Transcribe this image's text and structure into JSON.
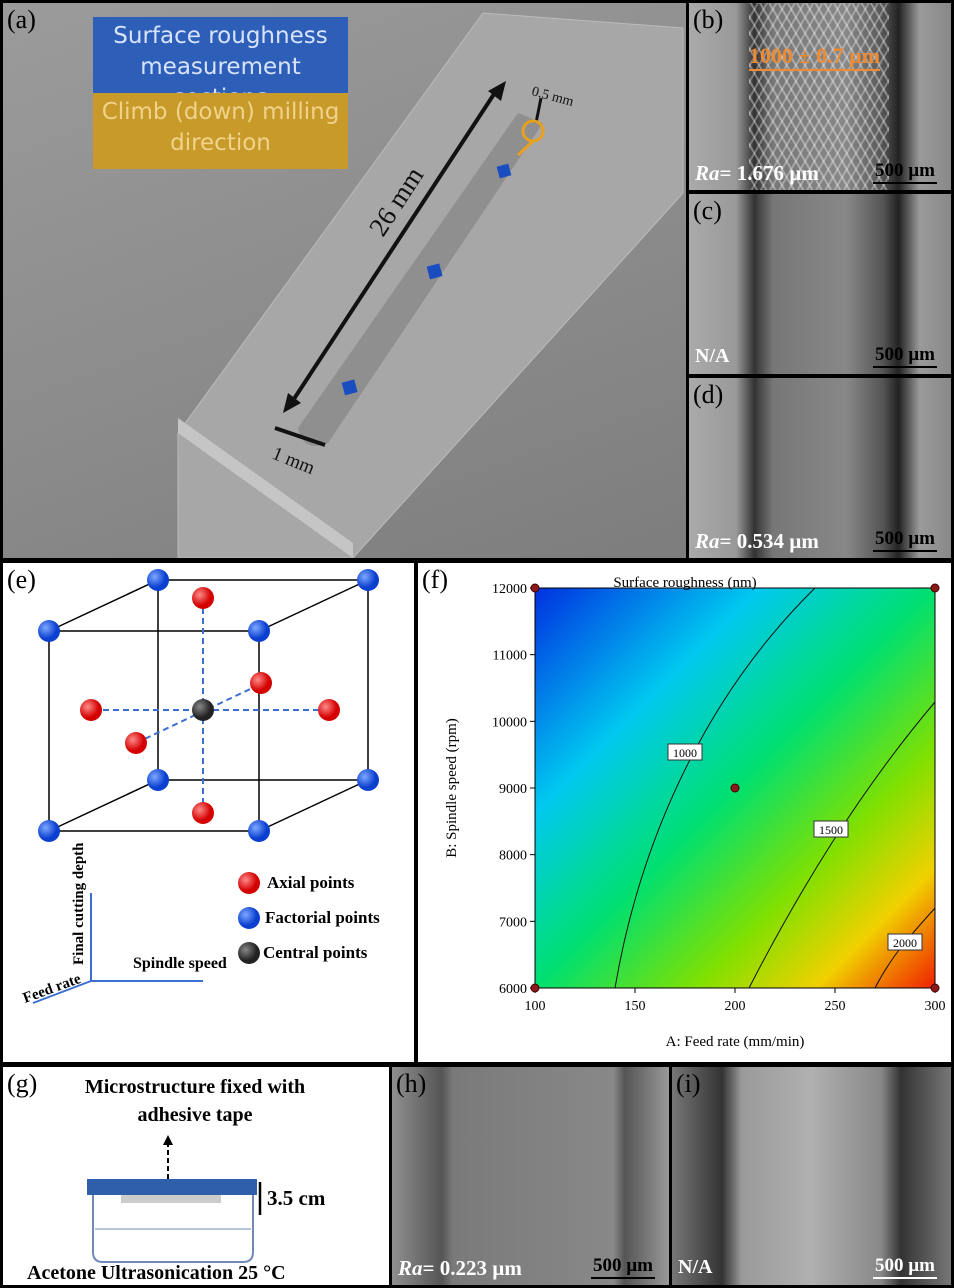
{
  "panel_a": {
    "label": "(a)",
    "legend_sections": "Surface roughness measurement sections",
    "legend_direction": "Climb (down) milling direction",
    "length": "26 mm",
    "depth": "0.5 mm",
    "width": "1 mm"
  },
  "panel_b": {
    "label": "(b)",
    "dimension": "1000 ± 0.7 µm",
    "scale": "500 µm",
    "ra_symbol": "Ra",
    "ra_value": "= 1.676 µm"
  },
  "panel_c": {
    "label": "(c)",
    "scale": "500 µm",
    "note": "N/A"
  },
  "panel_d": {
    "label": "(d)",
    "scale": "500 µm",
    "ra_symbol": "Ra",
    "ra_value": "= 0.534 µm"
  },
  "panel_e": {
    "label": "(e)",
    "legend": [
      "Axial points",
      "Factorial points",
      "Central points"
    ],
    "axis_depth": "Final cutting depth",
    "axis_speed": "Spindle speed",
    "axis_feed": "Feed rate"
  },
  "chart_data": {
    "type": "contour",
    "label": "(f)",
    "title": "Surface roughness (nm)",
    "x_label": "A: Feed rate (mm/min)",
    "y_label": "B: Spindle speed (rpm)",
    "xlim": [
      100,
      300
    ],
    "xticks": [
      100,
      150,
      200,
      250,
      300
    ],
    "ylim": [
      6000,
      12000
    ],
    "yticks": [
      6000,
      7000,
      8000,
      9000,
      10000,
      11000,
      12000
    ],
    "contour_levels": [
      1000,
      1500,
      2000
    ],
    "points": {
      "x": [
        100,
        300,
        100,
        300,
        200
      ],
      "y": [
        6000,
        6000,
        12000,
        12000,
        9000
      ],
      "color": "#8b1a1a"
    }
  },
  "panel_g": {
    "label": "(g)",
    "title": "Microstructure fixed with adhesive tape",
    "height": "3.5 cm",
    "footer": "Acetone Ultrasonication 25 °C"
  },
  "panel_h": {
    "label": "(h)",
    "scale": "500 µm",
    "ra_symbol": "Ra",
    "ra_value": "= 0.223 µm"
  },
  "panel_i": {
    "label": "(i)",
    "scale": "500 µm",
    "note": "N/A"
  }
}
